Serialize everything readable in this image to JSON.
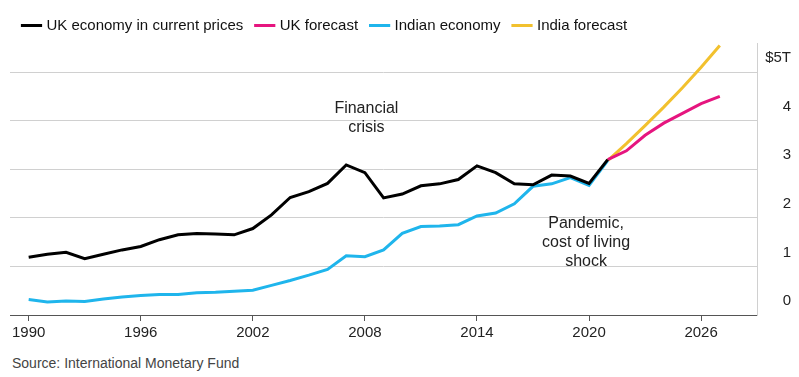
{
  "chart_data": {
    "type": "line",
    "source": "Source: International Monetary Fund",
    "x": [
      1990,
      1991,
      1992,
      1993,
      1994,
      1995,
      1996,
      1997,
      1998,
      1999,
      2000,
      2001,
      2002,
      2003,
      2004,
      2005,
      2006,
      2007,
      2008,
      2009,
      2010,
      2011,
      2012,
      2013,
      2014,
      2015,
      2016,
      2017,
      2018,
      2019,
      2020,
      2021,
      2022,
      2023,
      2024,
      2025,
      2026,
      2027
    ],
    "series": [
      {
        "name": "UK economy in current prices",
        "color": "#000000",
        "values": [
          1.19,
          1.25,
          1.29,
          1.16,
          1.25,
          1.34,
          1.41,
          1.55,
          1.65,
          1.68,
          1.67,
          1.65,
          1.78,
          2.06,
          2.42,
          2.54,
          2.71,
          3.09,
          2.93,
          2.41,
          2.49,
          2.66,
          2.7,
          2.79,
          3.07,
          2.93,
          2.7,
          2.68,
          2.88,
          2.86,
          2.71,
          3.2,
          null,
          null,
          null,
          null,
          null,
          null
        ]
      },
      {
        "name": "UK forecast",
        "color": "#e6157f",
        "values": [
          null,
          null,
          null,
          null,
          null,
          null,
          null,
          null,
          null,
          null,
          null,
          null,
          null,
          null,
          null,
          null,
          null,
          null,
          null,
          null,
          null,
          null,
          null,
          null,
          null,
          null,
          null,
          null,
          null,
          null,
          null,
          3.2,
          3.38,
          3.7,
          3.95,
          4.15,
          4.35,
          4.5
        ]
      },
      {
        "name": "Indian economy",
        "color": "#1fb5ec",
        "values": [
          0.32,
          0.27,
          0.29,
          0.28,
          0.33,
          0.37,
          0.4,
          0.42,
          0.42,
          0.46,
          0.47,
          0.49,
          0.51,
          0.61,
          0.71,
          0.82,
          0.94,
          1.22,
          1.2,
          1.34,
          1.68,
          1.82,
          1.83,
          1.86,
          2.04,
          2.1,
          2.29,
          2.65,
          2.7,
          2.83,
          2.67,
          3.18,
          null,
          null,
          null,
          null,
          null,
          null
        ]
      },
      {
        "name": "India forecast",
        "color": "#f2c12e",
        "values": [
          null,
          null,
          null,
          null,
          null,
          null,
          null,
          null,
          null,
          null,
          null,
          null,
          null,
          null,
          null,
          null,
          null,
          null,
          null,
          null,
          null,
          null,
          null,
          null,
          null,
          null,
          null,
          null,
          null,
          null,
          null,
          3.18,
          3.53,
          3.9,
          4.28,
          4.68,
          5.1,
          5.55
        ]
      }
    ],
    "xlim": [
      1989,
      2029
    ],
    "xticks": [
      1990,
      1996,
      2002,
      2008,
      2014,
      2020,
      2026
    ],
    "ylim": [
      0,
      5.6
    ],
    "yticks": [
      0,
      1,
      2,
      3,
      4,
      {
        "value": 5,
        "label": "$5T"
      }
    ],
    "grid": true,
    "legend": "top-left",
    "annotations": [
      {
        "text": [
          "Financial",
          "crisis"
        ]
      },
      {
        "text": [
          "Pandemic,",
          "cost of living",
          "shock"
        ]
      }
    ]
  }
}
